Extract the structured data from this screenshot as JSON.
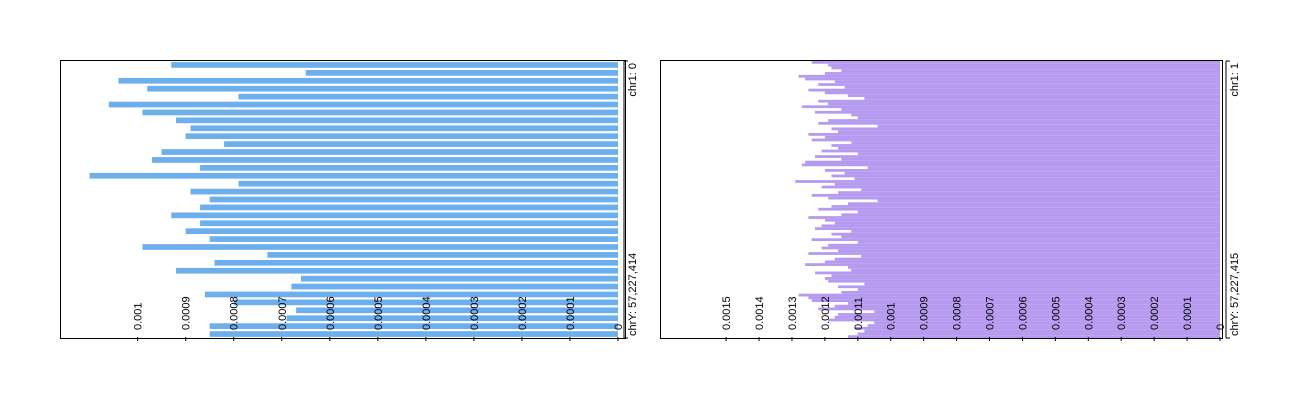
{
  "chart_data": [
    {
      "type": "bar",
      "orientation": "horizontal",
      "color": "#6daeec",
      "chrom_start_label": "chr1: 0",
      "chrom_end_label": "chrY: 57,227,414",
      "axis_ticks": [
        "0",
        "0.0001",
        "0.0002",
        "0.0003",
        "0.0004",
        "0.0005",
        "0.0006",
        "0.0007",
        "0.0008",
        "0.0009",
        "0.001"
      ],
      "xlim": [
        0,
        0.00112
      ],
      "values": [
        0.00093,
        0.00065,
        0.00104,
        0.00098,
        0.00079,
        0.00106,
        0.00099,
        0.00092,
        0.00089,
        0.0009,
        0.00082,
        0.00095,
        0.00097,
        0.00087,
        0.0011,
        0.00079,
        0.00089,
        0.00085,
        0.00087,
        0.00093,
        0.00087,
        0.0009,
        0.00085,
        0.00099,
        0.00073,
        0.00084,
        0.00092,
        0.00066,
        0.00068,
        0.00086,
        0.0008,
        0.00067,
        0.00069,
        0.00085,
        0.00085
      ]
    },
    {
      "type": "bar",
      "orientation": "horizontal",
      "color": "#b59af0",
      "chrom_start_label": "chr1: 1",
      "chrom_end_label": "chrY: 57,227,415",
      "axis_ticks": [
        "0",
        "0.0001",
        "0.0002",
        "0.0003",
        "0.0004",
        "0.0005",
        "0.0006",
        "0.0007",
        "0.0008",
        "0.0009",
        "0.001",
        "0.0011",
        "0.0012",
        "0.0013",
        "0.0014",
        "0.0015"
      ],
      "xlim": [
        0,
        0.00164
      ],
      "values": [
        0.00124,
        0.00119,
        0.00118,
        0.00115,
        0.0012,
        0.00128,
        0.00126,
        0.00117,
        0.00122,
        0.00114,
        0.00125,
        0.0012,
        0.00113,
        0.00108,
        0.00122,
        0.00119,
        0.00127,
        0.00115,
        0.00123,
        0.00112,
        0.0011,
        0.00119,
        0.00122,
        0.00104,
        0.00118,
        0.00116,
        0.00125,
        0.0012,
        0.00124,
        0.00112,
        0.00118,
        0.00116,
        0.00121,
        0.0011,
        0.00123,
        0.00115,
        0.00126,
        0.00127,
        0.00107,
        0.0012,
        0.00114,
        0.00118,
        0.00111,
        0.00129,
        0.00117,
        0.00121,
        0.00109,
        0.00116,
        0.00124,
        0.00119,
        0.00104,
        0.00113,
        0.00118,
        0.00122,
        0.0011,
        0.00115,
        0.00125,
        0.0012,
        0.00117,
        0.00121,
        0.00123,
        0.00112,
        0.00118,
        0.00115,
        0.00124,
        0.0011,
        0.00119,
        0.00121,
        0.00116,
        0.00125,
        0.00109,
        0.00117,
        0.0012,
        0.00126,
        0.00113,
        0.00112,
        0.00123,
        0.00118,
        0.0012,
        0.00119,
        0.00108,
        0.00116,
        0.0011,
        0.00115,
        0.00128,
        0.00125,
        0.00124,
        0.00113,
        0.00117,
        0.00122,
        0.00105,
        0.00116,
        0.00117,
        0.00119,
        0.00105,
        0.00107,
        0.00111,
        0.00108,
        0.0011,
        0.00113
      ]
    }
  ]
}
